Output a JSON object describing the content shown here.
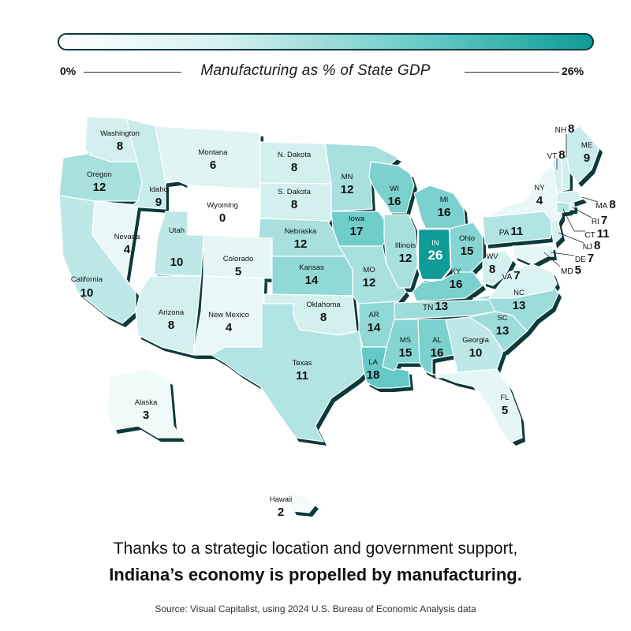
{
  "legend": {
    "title": "Manufacturing as % of State GDP",
    "min_label": "0%",
    "max_label": "26%",
    "min_color": "#ffffff",
    "max_color": "#0f9b98",
    "outline_color": "#0b3a3a"
  },
  "chart_data": {
    "type": "choropleth",
    "measure": "Manufacturing as % of State GDP",
    "range": [
      0,
      26
    ],
    "states": [
      {
        "name": "Washington",
        "value": 8
      },
      {
        "name": "Oregon",
        "value": 12
      },
      {
        "name": "California",
        "value": 10
      },
      {
        "name": "Nevada",
        "value": 4
      },
      {
        "name": "Idaho",
        "value": 9
      },
      {
        "name": "Montana",
        "value": 6
      },
      {
        "name": "Wyoming",
        "value": 0
      },
      {
        "name": "Utah",
        "value": 10
      },
      {
        "name": "Arizona",
        "value": 8
      },
      {
        "name": "Colorado",
        "value": 5
      },
      {
        "name": "New Mexico",
        "value": 4
      },
      {
        "name": "N. Dakota",
        "value": 8
      },
      {
        "name": "S. Dakota",
        "value": 8
      },
      {
        "name": "Nebraska",
        "value": 12
      },
      {
        "name": "Kansas",
        "value": 14
      },
      {
        "name": "Oklahoma",
        "value": 8
      },
      {
        "name": "Texas",
        "value": 11
      },
      {
        "name": "MN",
        "value": 12
      },
      {
        "name": "Iowa",
        "value": 17
      },
      {
        "name": "MO",
        "value": 12
      },
      {
        "name": "AR",
        "value": 14
      },
      {
        "name": "LA",
        "value": 18
      },
      {
        "name": "WI",
        "value": 16
      },
      {
        "name": "Illinois",
        "value": 12
      },
      {
        "name": "MI",
        "value": 16
      },
      {
        "name": "IN",
        "value": 26
      },
      {
        "name": "Ohio",
        "value": 15
      },
      {
        "name": "KY",
        "value": 16
      },
      {
        "name": "TN",
        "value": 13
      },
      {
        "name": "MS",
        "value": 15
      },
      {
        "name": "AL",
        "value": 16
      },
      {
        "name": "Georgia",
        "value": 10
      },
      {
        "name": "FL",
        "value": 5
      },
      {
        "name": "SC",
        "value": 13
      },
      {
        "name": "NC",
        "value": 13
      },
      {
        "name": "VA",
        "value": 7
      },
      {
        "name": "WV",
        "value": 8
      },
      {
        "name": "PA",
        "value": 11
      },
      {
        "name": "NY",
        "value": 4
      },
      {
        "name": "ME",
        "value": 9
      },
      {
        "name": "NH",
        "value": 8
      },
      {
        "name": "VT",
        "value": 8
      },
      {
        "name": "MA",
        "value": 8
      },
      {
        "name": "RI",
        "value": 7
      },
      {
        "name": "CT",
        "value": 11
      },
      {
        "name": "NJ",
        "value": 8
      },
      {
        "name": "DE",
        "value": 7
      },
      {
        "name": "MD",
        "value": 5
      },
      {
        "name": "Alaska",
        "value": 3
      },
      {
        "name": "Hawaii",
        "value": 2
      }
    ]
  },
  "caption": {
    "line1": "Thanks to a strategic location and government support,",
    "line2": "Indiana’s economy is propelled by manufacturing."
  },
  "source": "Source: Visual Capitalist, using 2024 U.S. Bureau of Economic Analysis data"
}
